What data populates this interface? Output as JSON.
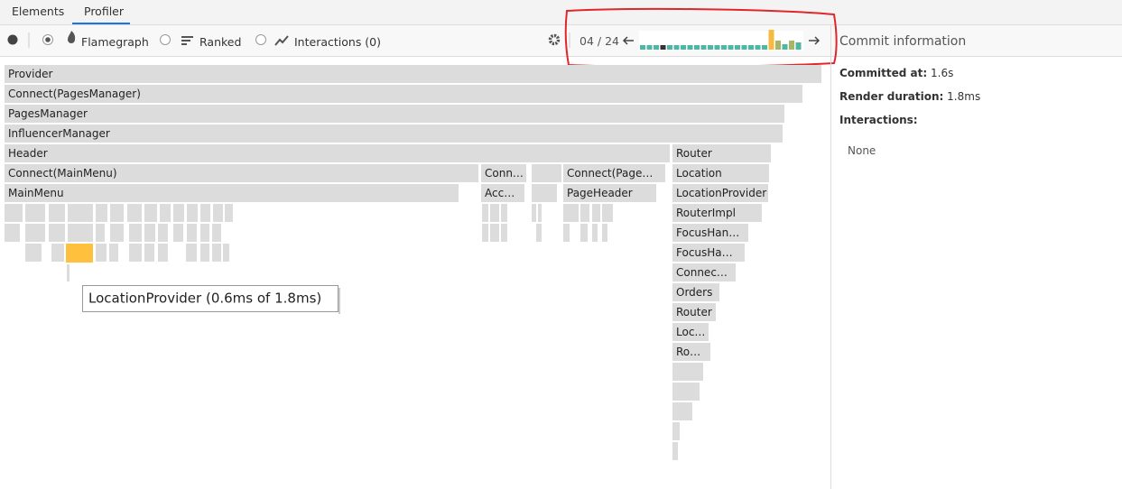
{
  "tabs": [
    "Elements",
    "Profiler"
  ],
  "toolbar": {
    "options": [
      "Flamegraph",
      "Ranked",
      "Interactions (0)"
    ],
    "commit_counter": "04 / 24"
  },
  "commit_bars": {
    "values": [
      5,
      5,
      5,
      5,
      5,
      5,
      5,
      5,
      5,
      5,
      5,
      5,
      5,
      5,
      5,
      5,
      5,
      5,
      5,
      22,
      10,
      6,
      10,
      8
    ],
    "colors": [
      "#4db6a4",
      "#4db6a4",
      "#4db6a4",
      "#333333",
      "#4db6a4",
      "#4db6a4",
      "#4db6a4",
      "#4db6a4",
      "#4db6a4",
      "#4db6a4",
      "#4db6a4",
      "#4db6a4",
      "#4db6a4",
      "#4db6a4",
      "#4db6a4",
      "#4db6a4",
      "#4db6a4",
      "#4db6a4",
      "#4db6a4",
      "#f7b93e",
      "#a8b466",
      "#4db6a4",
      "#a8b466",
      "#4db6a4"
    ]
  },
  "flamegraph": {
    "nodes": [
      "Provider",
      "Connect(PagesManager)",
      "PagesManager",
      "InfluencerManager",
      "Header",
      "Router",
      "Connect(MainMenu)",
      "Conn…",
      "Connect(Page…",
      "Location",
      "MainMenu",
      "Acc…",
      "PageHeader",
      "LocationProvider",
      "RouterImpl",
      "FocusHan…",
      "FocusHa…",
      "Connec…",
      "Orders",
      "Router",
      "Loc…",
      "Ro…"
    ],
    "tooltip": "LocationProvider (0.6ms of 1.8ms)"
  },
  "commit_info": {
    "title": "Commit information",
    "fields": [
      {
        "label": "Committed at:",
        "value": "1.6s"
      },
      {
        "label": "Render duration:",
        "value": "1.8ms"
      },
      {
        "label": "Interactions:",
        "value": ""
      }
    ],
    "interactions": "None"
  }
}
